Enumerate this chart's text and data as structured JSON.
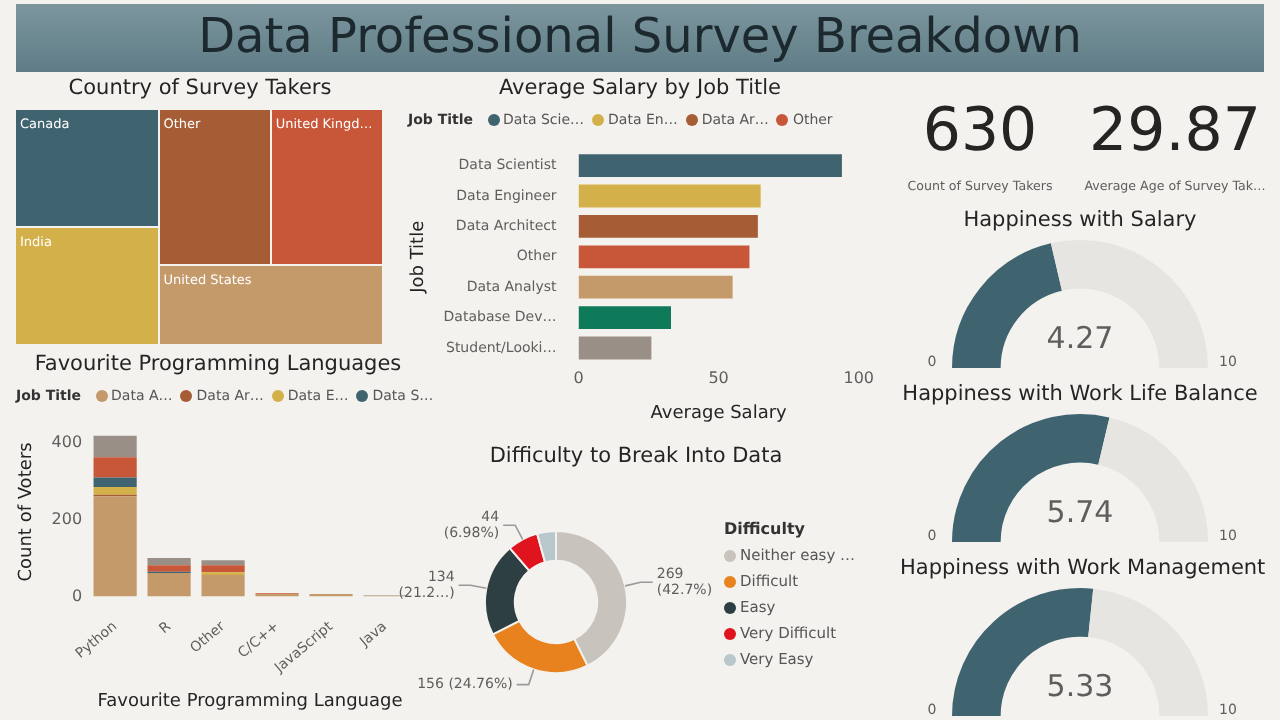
{
  "chart_data": [
    {
      "type": "other",
      "title": "Data Professional Survey Breakdown"
    },
    {
      "type": "other",
      "title": "Country of Survey Takers",
      "categories": [
        "Canada",
        "India",
        "Other",
        "United Kingd…",
        "United States"
      ],
      "colors": [
        "#3f6470",
        "#d4b04a",
        "#a65d36",
        "#c8573a",
        "#c49a6a"
      ]
    },
    {
      "type": "bar",
      "orientation": "horizontal",
      "title": "Average Salary by Job Title",
      "xlabel": "Average Salary",
      "ylabel": "Job Title",
      "legend_title": "Job Title",
      "legend": "top",
      "categories": [
        "Data Scientist",
        "Data Engineer",
        "Data Architect",
        "Other",
        "Data Analyst",
        "Database Dev…",
        "Student/Looki…"
      ],
      "xlim": [
        0,
        100
      ],
      "xticks": [
        0,
        50,
        100
      ],
      "series": [
        {
          "name": "Data Scie…",
          "color": "#3f6470",
          "values": [
            94,
            null,
            null,
            null,
            null,
            null,
            null
          ]
        },
        {
          "name": "Data En…",
          "color": "#d4b04a",
          "values": [
            null,
            65,
            null,
            null,
            null,
            null,
            null
          ]
        },
        {
          "name": "Data Ar…",
          "color": "#a65d36",
          "values": [
            null,
            null,
            64,
            null,
            null,
            null,
            null
          ]
        },
        {
          "name": "Other",
          "color": "#c8573a",
          "values": [
            null,
            null,
            null,
            61,
            null,
            null,
            null
          ]
        },
        {
          "color": "#c49a6a",
          "values": [
            null,
            null,
            null,
            null,
            55,
            null,
            null
          ]
        },
        {
          "color": "#0f7a5a",
          "values": [
            null,
            null,
            null,
            null,
            null,
            33,
            null
          ]
        },
        {
          "color": "#9a8f87",
          "values": [
            null,
            null,
            null,
            null,
            null,
            null,
            26
          ]
        }
      ]
    },
    {
      "type": "other",
      "values": [
        630
      ],
      "data_labels": true,
      "xlabel": "Count of Survey Takers"
    },
    {
      "type": "other",
      "values": [
        29.87
      ],
      "data_labels": true,
      "xlabel": "Average Age of Survey Tak…"
    },
    {
      "type": "donut",
      "title": "Happiness with Salary",
      "categories": [
        null,
        null
      ],
      "values": [
        42.7,
        57.3
      ],
      "colors": [
        "#3f6470",
        "#e6e5e1"
      ],
      "annotations": [
        "4.27",
        "0",
        "10"
      ]
    },
    {
      "type": "bar",
      "stacked": true,
      "title": "Favourite Programming Languages",
      "xlabel": "Favourite Programming Language",
      "ylabel": "Count of Voters",
      "legend_title": "Job Title",
      "legend": "top",
      "categories": [
        "Python",
        "R",
        "Other",
        "C/C++",
        "JavaScript",
        "Java"
      ],
      "ylim": [
        0,
        440
      ],
      "yticks": [
        0,
        200,
        400
      ],
      "series": [
        {
          "name": "Data A…",
          "color": "#c49a6a",
          "values": [
            261,
            61,
            56,
            6,
            6,
            2
          ]
        },
        {
          "name": "Data Ar…",
          "color": "#a65d36",
          "values": [
            4,
            null,
            null,
            null,
            null,
            null
          ]
        },
        {
          "name": "Data E…",
          "color": "#d4b04a",
          "values": [
            20,
            null,
            7,
            null,
            null,
            null
          ]
        },
        {
          "name": "Data S…",
          "color": "#3f6470",
          "values": [
            25,
            3,
            null,
            null,
            null,
            null
          ]
        },
        {
          "color": "#c8573a",
          "values": [
            53,
            17,
            18,
            2,
            null,
            null
          ]
        },
        {
          "color": "#9a8f87",
          "values": [
            56,
            19,
            13,
            null,
            null,
            1
          ]
        }
      ]
    },
    {
      "type": "donut",
      "title": "Happiness with Work Life Balance",
      "categories": [
        null,
        null
      ],
      "values": [
        57.4,
        42.6
      ],
      "colors": [
        "#3f6470",
        "#e6e5e1"
      ],
      "annotations": [
        "5.74",
        "0",
        "10"
      ]
    },
    {
      "type": "donut",
      "title": "Difficulty to Break Into Data",
      "legend_title": "Difficulty",
      "legend": "right",
      "categories": [
        "Neither easy …",
        "Difficult",
        "Easy",
        "Very Difficult",
        "Very Easy"
      ],
      "values": [
        269,
        156,
        134,
        44,
        27
      ],
      "colors": [
        "#c8c3bc",
        "#e8821e",
        "#2e3f44",
        "#e0141e",
        "#b7c7cc"
      ],
      "value_labels": [
        "269 (42.7%)",
        "156 (24.76%)",
        "134 (21.2…)",
        "44 (6.98%)",
        null
      ]
    },
    {
      "type": "donut",
      "title": "Happiness with Work Management",
      "categories": [
        null,
        null
      ],
      "values": [
        53.3,
        46.7
      ],
      "colors": [
        "#3f6470",
        "#e6e5e1"
      ],
      "annotations": [
        "5.33",
        "0",
        "10"
      ]
    }
  ]
}
